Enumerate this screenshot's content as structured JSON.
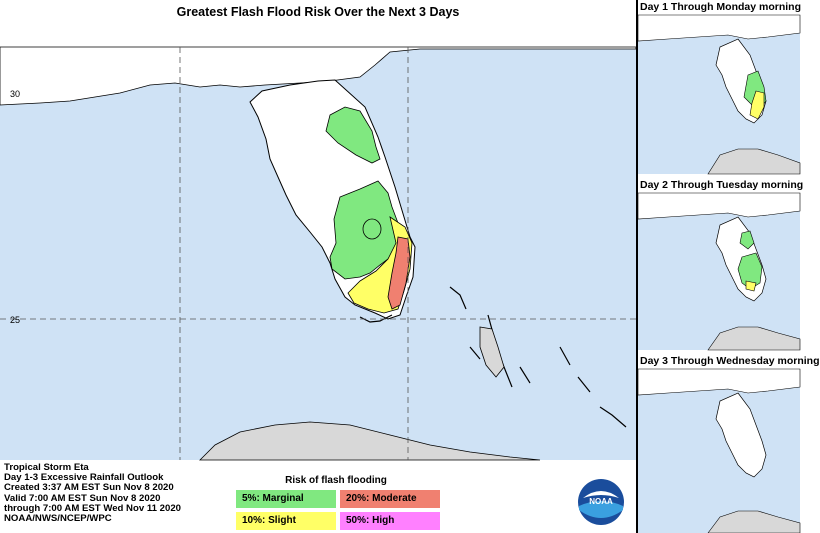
{
  "main": {
    "title": "Greatest Flash Flood Risk Over the Next 3 Days",
    "lat_labels": [
      "30",
      "25"
    ]
  },
  "info": {
    "lines": [
      "Tropical Storm Eta",
      "Day 1-3 Excessive Rainfall Outlook",
      "Created 3:37 AM EST Sun Nov 8 2020",
      "Valid 7:00 AM EST Sun Nov 8 2020",
      "through 7:00 AM EST Wed Nov 11 2020",
      "NOAA/NWS/NCEP/WPC"
    ]
  },
  "legend": {
    "title": "Risk of flash flooding",
    "items": [
      {
        "label": "5%: Marginal",
        "color": "#80e880"
      },
      {
        "label": "20%: Moderate",
        "color": "#f08070"
      },
      {
        "label": "10%: Slight",
        "color": "#ffff66"
      },
      {
        "label": "50%: High",
        "color": "#ff80ff"
      }
    ]
  },
  "logo_text": "NOAA",
  "panels": [
    {
      "title": "Day 1 Through Monday morning"
    },
    {
      "title": "Day 2 Through Tuesday morning"
    },
    {
      "title": "Day 3 Through Wednesday morning"
    }
  ],
  "colors": {
    "water": "#cfe2f5",
    "land": "#ffffff",
    "cuba": "#d8d8d8",
    "marginal": "#80e880",
    "slight": "#ffff66",
    "moderate": "#f08070",
    "high": "#ff80ff"
  }
}
